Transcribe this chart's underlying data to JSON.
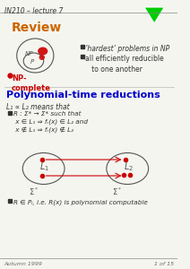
{
  "title_header": "IN210 – lecture 7",
  "footer_left": "Autumn 1999",
  "footer_right": "1 of 15",
  "review_title": "Review",
  "bullet1": "’hardest’ problems in ΝP",
  "bullet2": "all efficiently reducible\n   to one another",
  "np_complete_label": "NP-\ncomplete",
  "poly_title": "Polynomial-time reductions",
  "poly_line1": "L₁ ∝ L₂ means that",
  "poly_bullet1": "R : Σ* → Σ* such that\n x ∈ L₁ ⇒ fᵣ(x) ∈ L₂ and\n x ∉ L₁ ⇒ fᵣ(x) ∉ L₂",
  "poly_bullet2": "R ∈ Pₗ, i.e. R(x) is polynomial computable",
  "green_triangle_color": "#00cc00",
  "review_title_color": "#cc6600",
  "poly_title_color": "#0000cc",
  "np_complete_color": "#cc0000",
  "red_dot_color": "#cc0000",
  "arrow_color": "#cc0000",
  "text_color": "#333333",
  "bg_color": "#f5f5f0",
  "header_color": "#333333"
}
